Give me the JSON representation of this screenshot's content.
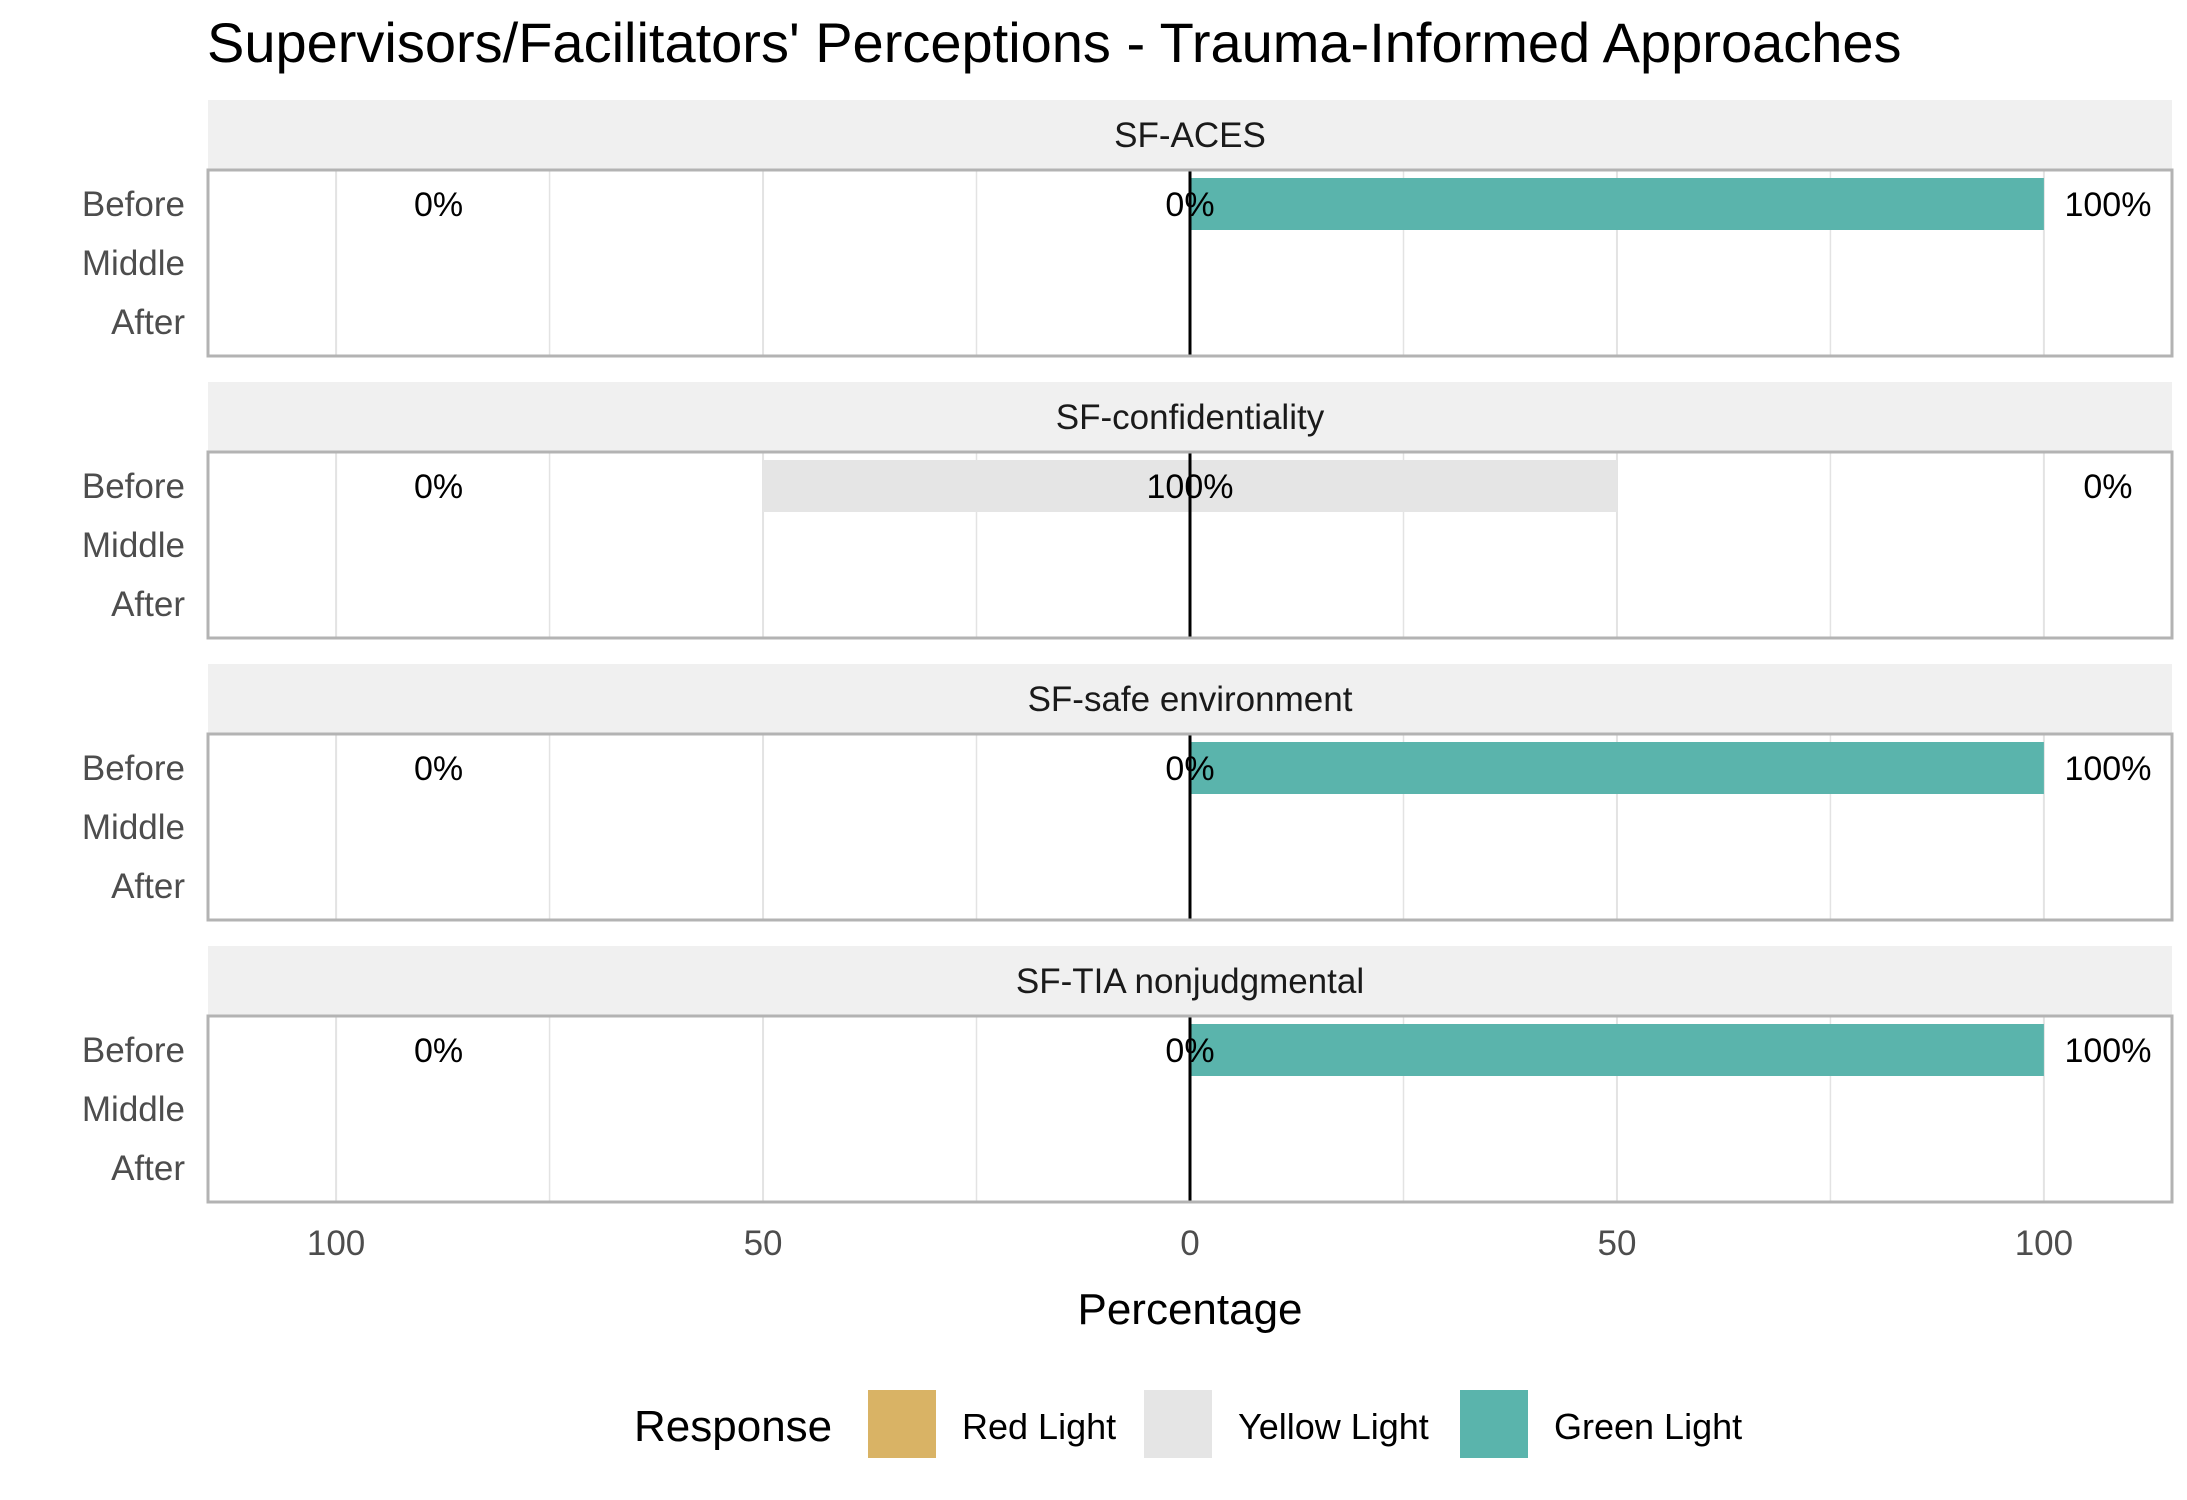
{
  "chart_data": {
    "type": "bar",
    "orientation": "horizontal-diverging",
    "title": "Supervisors/Facilitators' Perceptions - Trauma-Informed Approaches",
    "xlabel": "Percentage",
    "ylabel": "",
    "xlim": [
      -115,
      115
    ],
    "x_ticks": [
      -100,
      -50,
      0,
      50,
      100
    ],
    "x_tick_labels": [
      "100",
      "50",
      "0",
      "50",
      "100"
    ],
    "grid": true,
    "categories": [
      "Before",
      "Middle",
      "After"
    ],
    "legend": {
      "title": "Response",
      "placement": "bottom",
      "items": [
        {
          "name": "Red Light",
          "color": "#D9B365"
        },
        {
          "name": "Yellow Light",
          "color": "#E5E5E5"
        },
        {
          "name": "Green Light",
          "color": "#5AB4AC"
        }
      ]
    },
    "panels": [
      {
        "name": "SF-ACES",
        "rows": [
          {
            "category": "Before",
            "red": 0,
            "yellow": 0,
            "green": 100,
            "labels": {
              "left": "0%",
              "center": "0%",
              "right": "100%"
            }
          },
          {
            "category": "Middle",
            "red": 0,
            "yellow": 0,
            "green": 0,
            "labels": null
          },
          {
            "category": "After",
            "red": 0,
            "yellow": 0,
            "green": 0,
            "labels": null
          }
        ]
      },
      {
        "name": "SF-confidentiality",
        "rows": [
          {
            "category": "Before",
            "red": 0,
            "yellow": 100,
            "green": 0,
            "labels": {
              "left": "0%",
              "center": "100%",
              "right": "0%"
            }
          },
          {
            "category": "Middle",
            "red": 0,
            "yellow": 0,
            "green": 0,
            "labels": null
          },
          {
            "category": "After",
            "red": 0,
            "yellow": 0,
            "green": 0,
            "labels": null
          }
        ]
      },
      {
        "name": "SF-safe environment",
        "rows": [
          {
            "category": "Before",
            "red": 0,
            "yellow": 0,
            "green": 100,
            "labels": {
              "left": "0%",
              "center": "0%",
              "right": "100%"
            }
          },
          {
            "category": "Middle",
            "red": 0,
            "yellow": 0,
            "green": 0,
            "labels": null
          },
          {
            "category": "After",
            "red": 0,
            "yellow": 0,
            "green": 0,
            "labels": null
          }
        ]
      },
      {
        "name": "SF-TIA nonjudgmental",
        "rows": [
          {
            "category": "Before",
            "red": 0,
            "yellow": 0,
            "green": 100,
            "labels": {
              "left": "0%",
              "center": "0%",
              "right": "100%"
            }
          },
          {
            "category": "Middle",
            "red": 0,
            "yellow": 0,
            "green": 0,
            "labels": null
          },
          {
            "category": "After",
            "red": 0,
            "yellow": 0,
            "green": 0,
            "labels": null
          }
        ]
      }
    ]
  }
}
